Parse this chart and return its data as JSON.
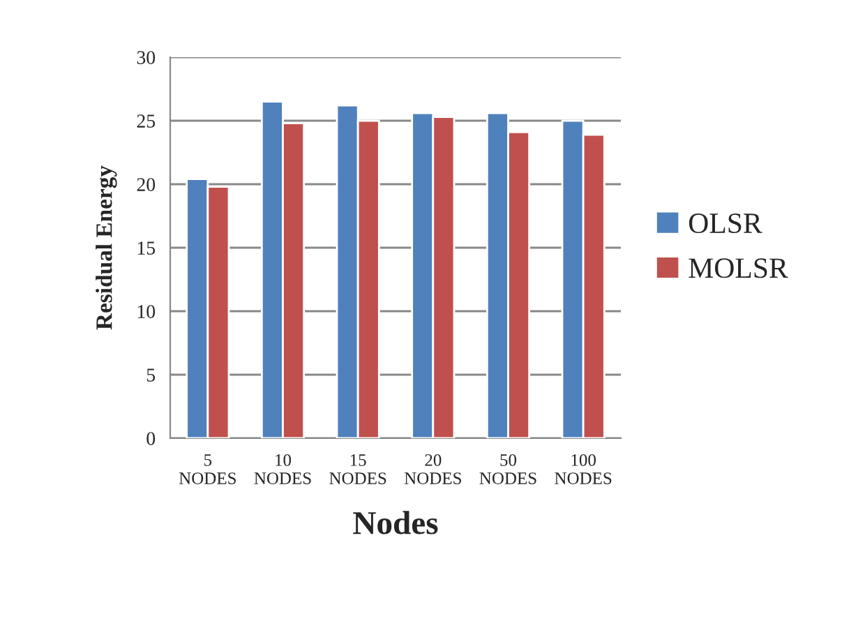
{
  "chart_data": {
    "type": "bar",
    "xlabel": "Nodes",
    "ylabel": "Residual Energy",
    "categories": [
      "5\nNODES",
      "10\nNODES",
      "15\nNODES",
      "20\nNODES",
      "50\nNODES",
      "100\nNODES"
    ],
    "series": [
      {
        "name": "OLSR",
        "color": "#4f81bd",
        "values": [
          20.4,
          26.5,
          26.2,
          25.6,
          25.6,
          25.0
        ]
      },
      {
        "name": "MOLSR",
        "color": "#c0504d",
        "values": [
          19.8,
          24.8,
          25.0,
          25.3,
          24.1,
          23.9
        ]
      }
    ],
    "ylim": [
      0,
      30
    ],
    "yticks": [
      0,
      5,
      10,
      15,
      20,
      25,
      30
    ],
    "grid": "y",
    "legend": "right"
  }
}
